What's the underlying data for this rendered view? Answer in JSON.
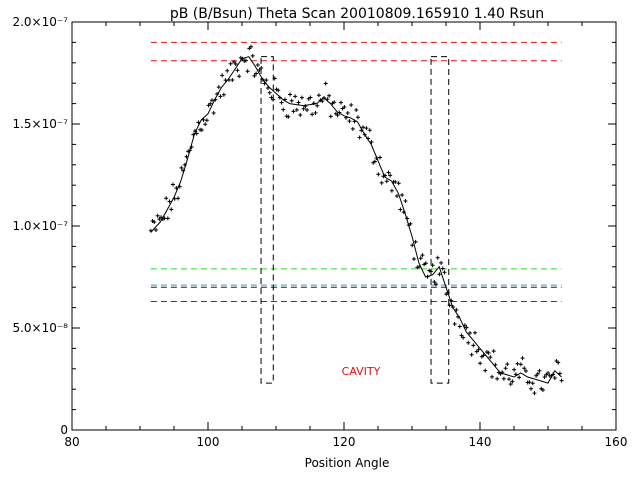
{
  "chart_data": {
    "type": "scatter",
    "title": "pB (B/Bsun) Theta Scan 20010809.165910 1.40 Rsun",
    "xlabel": "Position Angle",
    "ylabel": "",
    "xlim": [
      80,
      160
    ],
    "ylim": [
      0,
      2e-07
    ],
    "x_ticks": [
      {
        "value": 80,
        "label": "80"
      },
      {
        "value": 100,
        "label": "100"
      },
      {
        "value": 120,
        "label": "120"
      },
      {
        "value": 140,
        "label": "140"
      },
      {
        "value": 160,
        "label": "160"
      }
    ],
    "y_ticks": [
      {
        "value": 0,
        "label": "0"
      },
      {
        "value": 5e-08,
        "label": "5.0×10⁻⁸"
      },
      {
        "value": 1e-07,
        "label": "1.0×10⁻⁷"
      },
      {
        "value": 1.5e-07,
        "label": "1.5×10⁻⁷"
      },
      {
        "value": 2e-07,
        "label": "2.0×10⁻⁷"
      }
    ],
    "grid": false,
    "smoothed_curve": {
      "x": [
        91.6,
        93,
        94,
        95,
        96,
        97,
        98,
        99,
        100,
        101,
        102,
        103,
        104,
        105,
        106,
        107,
        108,
        109,
        110,
        111,
        112,
        114,
        116,
        117,
        118,
        119,
        120,
        121,
        122,
        123,
        124,
        125,
        126,
        127,
        128,
        129,
        130,
        131,
        132,
        133,
        134,
        135,
        136,
        137,
        138,
        139,
        140,
        141,
        142,
        143,
        144,
        145,
        146,
        147,
        148,
        149,
        150,
        151,
        152
      ],
      "y": [
        9.7e-08,
        1.02e-07,
        1.08e-07,
        1.14e-07,
        1.22e-07,
        1.33e-07,
        1.45e-07,
        1.52e-07,
        1.55e-07,
        1.62e-07,
        1.68e-07,
        1.72e-07,
        1.77e-07,
        1.82e-07,
        1.83e-07,
        1.78e-07,
        1.72e-07,
        1.68e-07,
        1.65e-07,
        1.62e-07,
        1.6e-07,
        1.59e-07,
        1.6e-07,
        1.63e-07,
        1.6e-07,
        1.56e-07,
        1.54e-07,
        1.53e-07,
        1.51e-07,
        1.45e-07,
        1.4e-07,
        1.32e-07,
        1.24e-07,
        1.22e-07,
        1.16e-07,
        1.06e-07,
        9.5e-08,
        8.2e-08,
        7.5e-08,
        7.6e-08,
        8e-08,
        7e-08,
        6e-08,
        5.5e-08,
        4.8e-08,
        4.4e-08,
        4e-08,
        3.6e-08,
        3.2e-08,
        2.8e-08,
        2.7e-08,
        2.6e-08,
        2.8e-08,
        2.6e-08,
        2.5e-08,
        2.4e-08,
        2.3e-08,
        2.9e-08,
        2.6e-08
      ]
    },
    "scatter_noise": 6e-09,
    "scatter_points_per_unit": 4,
    "reference_lines": [
      {
        "y": 1.9e-07,
        "x_range": [
          91.6,
          152
        ],
        "color": "#e01010",
        "style": "dashed"
      },
      {
        "y": 1.81e-07,
        "x_range": [
          91.6,
          152
        ],
        "color": "#e01010",
        "style": "dashed"
      },
      {
        "y": 7.9e-08,
        "x_range": [
          91.6,
          152
        ],
        "color": "#22dd22",
        "style": "dashed"
      },
      {
        "y": 7.1e-08,
        "x_range": [
          91.6,
          152
        ],
        "color": "#20a0d0",
        "style": "dashed"
      },
      {
        "y": 7e-08,
        "x_range": [
          91.6,
          152
        ],
        "color": "#202020",
        "style": "dashed"
      },
      {
        "y": 6.3e-08,
        "x_range": [
          91.6,
          152
        ],
        "color": "#1530e0",
        "style": "dashed"
      }
    ],
    "regions": [
      {
        "x0": 107.8,
        "x1": 109.6,
        "y0": 2.3e-08,
        "y1": 1.83e-07
      },
      {
        "x0": 132.8,
        "x1": 135.4,
        "y0": 2.3e-08,
        "y1": 1.83e-07
      }
    ],
    "annotations": [
      {
        "text": "CAVITY",
        "x": 122.5,
        "y": 2.7e-08,
        "color": "#e01010"
      }
    ]
  }
}
